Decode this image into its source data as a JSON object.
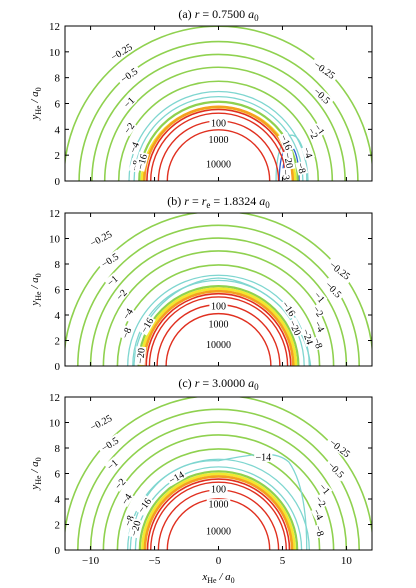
{
  "chart_data": {
    "type": "contour",
    "x_axis": {
      "label": "x_He / a_0",
      "label_main": "x",
      "label_sub": "He",
      "label_rest": " / a",
      "label_sub2": "0",
      "range": [
        -12,
        12
      ],
      "ticks": [
        -10,
        -5,
        0,
        5,
        10
      ],
      "tick_labels": [
        "−10",
        "−5",
        "0",
        "5",
        "10"
      ]
    },
    "panels": [
      {
        "title": "(a) r = 0.7500 a0",
        "title_parts": [
          "(a) ",
          "r",
          " = 0.7500 ",
          "a",
          "0"
        ],
        "y_axis": {
          "label": "y_He / a_0",
          "range": [
            0,
            12
          ],
          "ticks": [
            0,
            2,
            4,
            6,
            8,
            10,
            12
          ],
          "tick_labels": [
            "0",
            "2",
            "4",
            "6",
            "8",
            "10",
            "12"
          ]
        },
        "contour_levels": [
          -0.25,
          -0.5,
          -1,
          -2,
          -4,
          -8,
          -16,
          -20,
          -36,
          100,
          1000,
          10000
        ],
        "contour_labels": [
          "−0.25",
          "−0.5",
          "−1",
          "−2",
          "−4",
          "−8",
          "−16",
          "−20",
          "−36",
          "100",
          "1000",
          "10000"
        ]
      },
      {
        "title": "(b) r = re = 1.8324 a0",
        "title_parts": [
          "(b) ",
          "r",
          " = ",
          "r",
          "e",
          " = 1.8324 ",
          "a",
          "0"
        ],
        "y_axis": {
          "label": "y_He / a_0",
          "range": [
            0,
            12
          ],
          "ticks": [
            0,
            2,
            4,
            6,
            8,
            10,
            12
          ],
          "tick_labels": [
            "0",
            "2",
            "4",
            "6",
            "8",
            "10",
            "12"
          ]
        },
        "contour_levels": [
          -0.25,
          -0.5,
          -1,
          -2,
          -4,
          -8,
          -16,
          -20,
          -24,
          100,
          1000,
          10000
        ],
        "contour_labels": [
          "−0.25",
          "−0.5",
          "−1",
          "−2",
          "−4",
          "−8",
          "−16",
          "−20",
          "−24",
          "100",
          "1000",
          "10000"
        ]
      },
      {
        "title": "(c) r = 3.0000 a0",
        "title_parts": [
          "(c) ",
          "r",
          " = 3.0000 ",
          "a",
          "0"
        ],
        "y_axis": {
          "label": "y_He / a_0",
          "range": [
            0,
            12
          ],
          "ticks": [
            0,
            2,
            4,
            6,
            8,
            10,
            12
          ],
          "tick_labels": [
            "0",
            "2",
            "4",
            "6",
            "8",
            "10",
            "12"
          ]
        },
        "contour_levels": [
          -0.25,
          -0.5,
          -1,
          -2,
          -4,
          -8,
          -14,
          -16,
          -20,
          100,
          1000,
          10000
        ],
        "contour_labels": [
          "−0.25",
          "−0.5",
          "−1",
          "−2",
          "−4",
          "−8",
          "−14",
          "−16",
          "−20",
          "100",
          "1000",
          "10000"
        ]
      }
    ],
    "colors": {
      "outer_contours": "#8fd14f",
      "mid_contours": "#7fd6d0",
      "deep_contours": "#2a5fd0",
      "repulsive_contours": "#e03020",
      "wall_orange": "#f5a020",
      "wall_yellow": "#f2e830"
    }
  }
}
